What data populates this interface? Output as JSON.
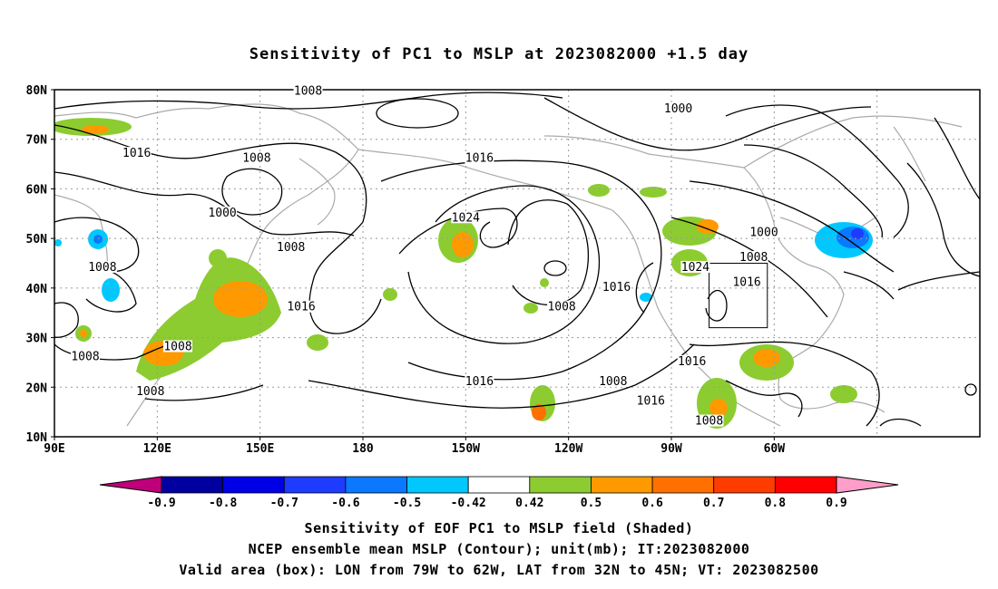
{
  "title": "Sensitivity of PC1 to MSLP at 2023082000 +1.5 day",
  "lat_ticks": [
    "80N",
    "70N",
    "60N",
    "50N",
    "40N",
    "30N",
    "20N",
    "10N"
  ],
  "lon_ticks": [
    "90E",
    "120E",
    "150E",
    "180",
    "150W",
    "120W",
    "90W",
    "60W"
  ],
  "contour_labels": [
    {
      "text": "1008",
      "lon": 164,
      "lat": 79.5
    },
    {
      "text": "1000",
      "lon": -88,
      "lat": 76
    },
    {
      "text": "1016",
      "lon": 114,
      "lat": 67
    },
    {
      "text": "1008",
      "lon": 149,
      "lat": 66
    },
    {
      "text": "1016",
      "lon": -146,
      "lat": 66
    },
    {
      "text": "1000",
      "lon": 139,
      "lat": 55
    },
    {
      "text": "1024",
      "lon": -150,
      "lat": 54
    },
    {
      "text": "1008",
      "lon": 159,
      "lat": 48
    },
    {
      "text": "1000",
      "lon": -63,
      "lat": 51
    },
    {
      "text": "1008",
      "lon": -66,
      "lat": 46
    },
    {
      "text": "1008",
      "lon": 104,
      "lat": 44
    },
    {
      "text": "1024",
      "lon": -83,
      "lat": 44
    },
    {
      "text": "1016",
      "lon": -68,
      "lat": 41
    },
    {
      "text": "1016",
      "lon": -106,
      "lat": 40
    },
    {
      "text": "1016",
      "lon": 162,
      "lat": 36
    },
    {
      "text": "1008",
      "lon": -122,
      "lat": 36
    },
    {
      "text": "1008",
      "lon": 126,
      "lat": 28
    },
    {
      "text": "1008",
      "lon": 99,
      "lat": 26
    },
    {
      "text": "1016",
      "lon": -84,
      "lat": 25
    },
    {
      "text": "1016",
      "lon": -146,
      "lat": 21
    },
    {
      "text": "1008",
      "lon": 118,
      "lat": 19
    },
    {
      "text": "1008",
      "lon": -107,
      "lat": 21
    },
    {
      "text": "1016",
      "lon": -96,
      "lat": 17
    },
    {
      "text": "1008",
      "lon": -79,
      "lat": 13
    }
  ],
  "colorbar": {
    "labels": [
      "-0.9",
      "-0.8",
      "-0.7",
      "-0.6",
      "-0.5",
      "-0.42",
      "0.42",
      "0.5",
      "0.6",
      "0.7",
      "0.8",
      "0.9"
    ],
    "colors": [
      "#c0007a",
      "#0000a0",
      "#0000e6",
      "#1e3cff",
      "#0a78ff",
      "#00c8ff",
      "#ffffff",
      "#8ccc30",
      "#ff9900",
      "#ff7000",
      "#ff3c00",
      "#ff0000",
      "#ff9ec8"
    ]
  },
  "captions": [
    "Sensitivity of EOF PC1 to MSLP field (Shaded)",
    "NCEP ensemble mean MSLP (Contour); unit(mb); IT:2023082000",
    "Valid area (box): LON from 79W to 62W, LAT from 32N to 45N; VT: 2023082500"
  ],
  "valid_box": {
    "lon_w": -79,
    "lon_e": -62,
    "lat_s": 32,
    "lat_n": 45
  }
}
